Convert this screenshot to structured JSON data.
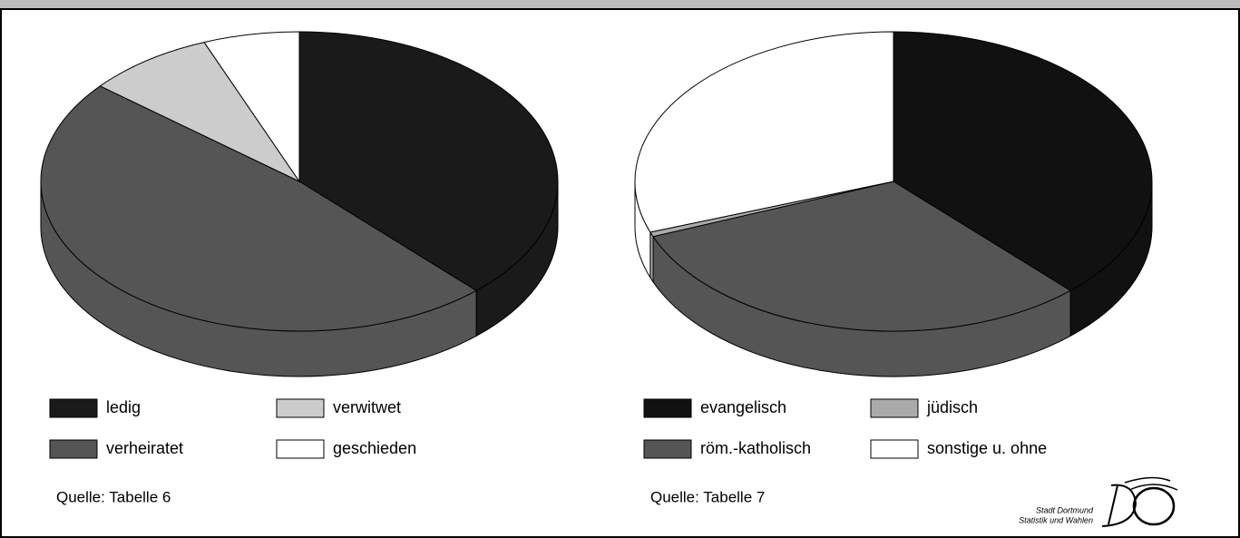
{
  "chart_data": [
    {
      "type": "pie",
      "categories": [
        "ledig",
        "verheiratet",
        "verwitwet",
        "geschieden"
      ],
      "values": [
        38,
        48,
        8,
        6
      ],
      "colors": [
        "#1a1a1a",
        "#555555",
        "#cccccc",
        "#ffffff"
      ],
      "source": "Quelle: Tabelle 6"
    },
    {
      "type": "pie",
      "categories": [
        "evangelisch",
        "röm.-katholisch",
        "jüdisch",
        "sonstige u. ohne"
      ],
      "values": [
        38,
        31,
        0.5,
        30.5
      ],
      "colors": [
        "#111111",
        "#555555",
        "#aaaaaa",
        "#ffffff"
      ],
      "source": "Quelle: Tabelle 7"
    }
  ],
  "logo": {
    "line1": "Stadt Dortmund",
    "line2": "Statistik und Wahlen"
  }
}
